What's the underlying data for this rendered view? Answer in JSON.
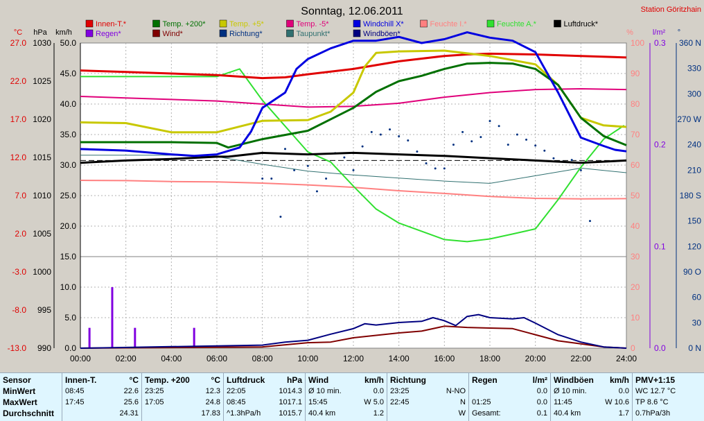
{
  "chart_data": {
    "type": "line",
    "title": "Sonntag, 12.06.2011",
    "station": "Station Göritzhain",
    "legend": [
      {
        "name": "Innen-T.*",
        "color": "#e00000"
      },
      {
        "name": "Temp. +200*",
        "color": "#007000"
      },
      {
        "name": "Temp. +5*",
        "color": "#c8c800"
      },
      {
        "name": "Temp. -5*",
        "color": "#e0007a"
      },
      {
        "name": "Windchill X*",
        "color": "#0000e0"
      },
      {
        "name": "Feuchte I.*",
        "color": "#ff8080"
      },
      {
        "name": "Feuchte A.*",
        "color": "#30e030"
      },
      {
        "name": "Luftdruck*",
        "color": "#000000"
      },
      {
        "name": "Regen*",
        "color": "#8000e0"
      },
      {
        "name": "Wind*",
        "color": "#800000"
      },
      {
        "name": "Richtung*",
        "color": "#003080"
      },
      {
        "name": "Taupunkt*",
        "color": "#307070"
      },
      {
        "name": "Windböen*",
        "color": "#000080"
      }
    ],
    "axes": {
      "temp": {
        "unit": "°C",
        "ticks": [
          "27.0",
          "22.0",
          "17.0",
          "12.0",
          "7.0",
          "2.0",
          "-3.0",
          "-8.0",
          "-13.0"
        ]
      },
      "pressure": {
        "unit": "hPa",
        "ticks": [
          "1030",
          "1025",
          "1020",
          "1015",
          "1010",
          "1005",
          "1000",
          "995",
          "990"
        ]
      },
      "wind": {
        "unit": "km/h",
        "ticks": [
          "50.0",
          "45.0",
          "40.0",
          "35.0",
          "30.0",
          "25.0",
          "20.0",
          "15.0",
          "10.0",
          "5.0",
          "0.0"
        ]
      },
      "humidity": {
        "unit": "%",
        "ticks": [
          "100",
          "90",
          "80",
          "70",
          "60",
          "50",
          "40",
          "30",
          "20",
          "10",
          "0"
        ]
      },
      "rain": {
        "unit": "l/m²",
        "ticks": [
          "0.3",
          "0.2",
          "0.1",
          "0.0"
        ]
      },
      "direction": {
        "unit": "°",
        "ticks": [
          "360 N",
          "330",
          "300",
          "270 W",
          "240",
          "210",
          "180 S",
          "150",
          "120",
          "90 O",
          "60",
          "30",
          "0 N"
        ]
      },
      "time": [
        "00:00",
        "02:00",
        "04:00",
        "06:00",
        "08:00",
        "10:00",
        "12:00",
        "14:00",
        "16:00",
        "18:00",
        "20:00",
        "22:00",
        "24:00"
      ]
    },
    "series": [
      {
        "name": "Innen-T.*",
        "axis": "temp",
        "x": [
          0,
          2,
          4,
          6,
          8,
          9,
          10,
          12,
          14,
          16,
          17,
          18,
          20,
          22,
          24
        ],
        "y": [
          23.4,
          23.2,
          23.0,
          22.8,
          22.4,
          22.5,
          22.9,
          23.6,
          24.6,
          25.3,
          25.5,
          25.6,
          25.5,
          25.3,
          25.1
        ]
      },
      {
        "name": "Temp. +200*",
        "axis": "temp",
        "x": [
          0,
          2,
          4,
          6,
          6.5,
          8,
          10,
          12,
          13,
          14,
          15,
          16,
          17,
          18,
          19,
          20,
          21,
          22,
          23,
          24
        ],
        "y": [
          14.0,
          14.0,
          14.0,
          13.9,
          13.3,
          14.4,
          15.5,
          18.5,
          20.6,
          22.0,
          22.7,
          23.6,
          24.3,
          24.4,
          24.3,
          23.6,
          21.5,
          17.2,
          14.8,
          13.6
        ]
      },
      {
        "name": "Temp. +5*",
        "axis": "temp",
        "x": [
          0,
          2,
          4,
          6,
          8,
          10,
          11,
          12,
          12.5,
          13,
          14,
          16,
          18,
          20,
          21,
          22,
          23,
          24
        ],
        "y": [
          16.6,
          16.5,
          15.3,
          15.3,
          16.8,
          16.9,
          18.0,
          20.5,
          23.9,
          25.7,
          25.9,
          26.0,
          25.3,
          24.2,
          21.5,
          17.2,
          16.2,
          16.0
        ]
      },
      {
        "name": "Temp. -5*",
        "axis": "temp",
        "x": [
          0,
          2,
          4,
          6,
          8,
          10,
          12,
          14,
          16,
          18,
          20,
          22,
          24
        ],
        "y": [
          20.0,
          19.8,
          19.6,
          19.4,
          19.0,
          18.6,
          18.7,
          19.1,
          19.9,
          20.5,
          20.9,
          21.0,
          20.9
        ]
      },
      {
        "name": "Windchill X*",
        "axis": "temp",
        "x": [
          0,
          2,
          4,
          5,
          6,
          7,
          7.5,
          8,
          9,
          9.5,
          10,
          11,
          12,
          13,
          14,
          15,
          16,
          17,
          18,
          19,
          20,
          21,
          22,
          23,
          23.5,
          24
        ],
        "y": [
          13.1,
          12.9,
          12.4,
          12.2,
          12.4,
          13.3,
          15.4,
          18.5,
          20.5,
          23.6,
          24.9,
          26.3,
          27.3,
          27.3,
          27.8,
          27.0,
          27.5,
          28.4,
          27.7,
          27.3,
          25.8,
          20.5,
          14.6,
          13.5,
          13.0,
          12.8
        ]
      },
      {
        "name": "Feuchte I.*",
        "axis": "humidity",
        "x": [
          0,
          2,
          4,
          6,
          8,
          10,
          12,
          14,
          16,
          18,
          20,
          22,
          24
        ],
        "y": [
          55.0,
          54.9,
          54.6,
          54.5,
          54.1,
          53.5,
          52.7,
          51.6,
          50.7,
          49.7,
          49.1,
          48.9,
          49.0
        ]
      },
      {
        "name": "Feuchte A.*",
        "axis": "humidity",
        "x": [
          0,
          2,
          4,
          6,
          7,
          8,
          10,
          11,
          12,
          13,
          14,
          16,
          17,
          18,
          19,
          20,
          21,
          22,
          23,
          23.9
        ],
        "y": [
          89.0,
          89.0,
          89.0,
          89.0,
          91.5,
          81.2,
          64.3,
          61.0,
          53.1,
          45.6,
          41.0,
          35.6,
          34.9,
          35.8,
          37.4,
          39.1,
          48.7,
          59.3,
          68.5,
          73.0
        ]
      },
      {
        "name": "Luftdruck*",
        "axis": "pressure",
        "x": [
          0,
          2,
          4,
          6,
          6.5,
          8,
          10,
          12,
          14,
          16,
          18,
          20,
          22,
          24
        ],
        "y": [
          1014.3,
          1014.6,
          1014.8,
          1015.1,
          1015.1,
          1015.6,
          1015.4,
          1015.6,
          1015.4,
          1015.2,
          1014.9,
          1014.6,
          1014.3,
          1014.6
        ]
      },
      {
        "name": "Taupunkt*",
        "axis": "temp",
        "x": [
          0,
          2,
          4,
          6,
          8,
          10,
          12,
          14,
          16,
          18,
          20,
          22,
          24
        ],
        "y": [
          12.3,
          12.3,
          12.3,
          12.1,
          11.1,
          10.2,
          9.7,
          9.3,
          8.9,
          8.6,
          9.6,
          10.6,
          10.0
        ]
      },
      {
        "name": "Wind*",
        "axis": "wind",
        "x": [
          0,
          8,
          10,
          11,
          12,
          13,
          14,
          15,
          16,
          17,
          18,
          19,
          20,
          21,
          22,
          23,
          24
        ],
        "y": [
          0.0,
          0.2,
          0.9,
          1.0,
          1.7,
          2.1,
          2.5,
          2.8,
          3.6,
          3.4,
          3.3,
          3.2,
          2.2,
          1.2,
          0.7,
          0.2,
          0.0
        ]
      },
      {
        "name": "Windböen*",
        "axis": "wind",
        "x": [
          0,
          8,
          9,
          10,
          11,
          12,
          12.5,
          13,
          14,
          15,
          15.5,
          16,
          16.5,
          17,
          17.5,
          18,
          19,
          19.5,
          20,
          21,
          22,
          23,
          24
        ],
        "y": [
          0.0,
          0.5,
          1.0,
          1.3,
          2.3,
          3.2,
          4.0,
          3.8,
          4.2,
          4.4,
          5.0,
          4.5,
          3.7,
          5.2,
          5.5,
          5.0,
          4.8,
          5.0,
          4.1,
          2.2,
          1.0,
          0.2,
          0.0
        ]
      }
    ],
    "rain_bars": {
      "x": [
        0.4,
        1.4,
        2.4,
        5.0
      ],
      "y": [
        0.02,
        0.06,
        0.02,
        0.02
      ]
    },
    "direction_points": {
      "x": [
        8,
        8.4,
        8.8,
        9,
        9.4,
        10,
        10.4,
        10.8,
        11.2,
        11.6,
        12,
        12.4,
        12.8,
        13.2,
        13.6,
        14,
        14.4,
        14.8,
        15.2,
        15.6,
        16,
        16.4,
        16.8,
        17.2,
        17.6,
        18,
        18.4,
        18.8,
        19.2,
        19.6,
        20,
        20.4,
        20.8,
        21.2,
        21.6,
        22,
        22.4
      ],
      "y": [
        200,
        200,
        155,
        235,
        210,
        215,
        185,
        200,
        230,
        225,
        210,
        238,
        255,
        252,
        258,
        250,
        245,
        232,
        218,
        212,
        212,
        240,
        255,
        244,
        249,
        268,
        262,
        240,
        252,
        246,
        239,
        233,
        224,
        220,
        222,
        210,
        150
      ]
    },
    "reference_line_pressure": 1014.6,
    "ylim_pressure": [
      990,
      1030
    ],
    "ylim_humidity": [
      0,
      100
    ],
    "ylim_wind": [
      0,
      50
    ],
    "xlim": [
      0,
      24
    ]
  },
  "stats": {
    "sensor": {
      "title": "Sensor",
      "rows": [
        "MinWert",
        "MaxWert",
        "Durchschnitt"
      ]
    },
    "innen": {
      "title": "Innen-T.",
      "unit": "°C",
      "rows": [
        [
          "08:45",
          "22.6"
        ],
        [
          "17:45",
          "25.6"
        ],
        [
          "",
          "24.31"
        ]
      ]
    },
    "temp200": {
      "title": "Temp. +200",
      "unit": "°C",
      "rows": [
        [
          "23:25",
          "12.3"
        ],
        [
          "17:05",
          "24.8"
        ],
        [
          "",
          "17.83"
        ]
      ]
    },
    "druck": {
      "title": "Luftdruck",
      "unit": "hPa",
      "rows": [
        [
          "22:05",
          "1014.3"
        ],
        [
          "08:45",
          "1017.1"
        ],
        [
          "^1.3hPa/h",
          "1015.7"
        ]
      ]
    },
    "wind": {
      "title": "Wind",
      "unit": "km/h",
      "rows": [
        [
          "Ø 10 min.",
          "0.0"
        ],
        [
          "15:45",
          "W 5.0"
        ],
        [
          "40.4 km",
          "1.2"
        ]
      ]
    },
    "richtung": {
      "title": "Richtung",
      "unit": "",
      "rows": [
        [
          "23:25",
          "N-NO"
        ],
        [
          "22:45",
          "N"
        ],
        [
          "",
          "W"
        ]
      ]
    },
    "regen": {
      "title": "Regen",
      "unit": "l/m²",
      "rows": [
        [
          "",
          "0.0"
        ],
        [
          "01:25",
          "0.0"
        ],
        [
          "Gesamt:",
          "0.1"
        ]
      ]
    },
    "boeen": {
      "title": "Windböen",
      "unit": "km/h",
      "rows": [
        [
          "Ø 10 min.",
          "0.0"
        ],
        [
          "11:45",
          "W 10.6"
        ],
        [
          "40.4 km",
          "1.7"
        ]
      ]
    },
    "pmv": {
      "title": "PMV+1:15",
      "rows": [
        "WC 12.7 °C",
        "TP 8.6 °C",
        "0.7hPa/3h"
      ]
    }
  }
}
